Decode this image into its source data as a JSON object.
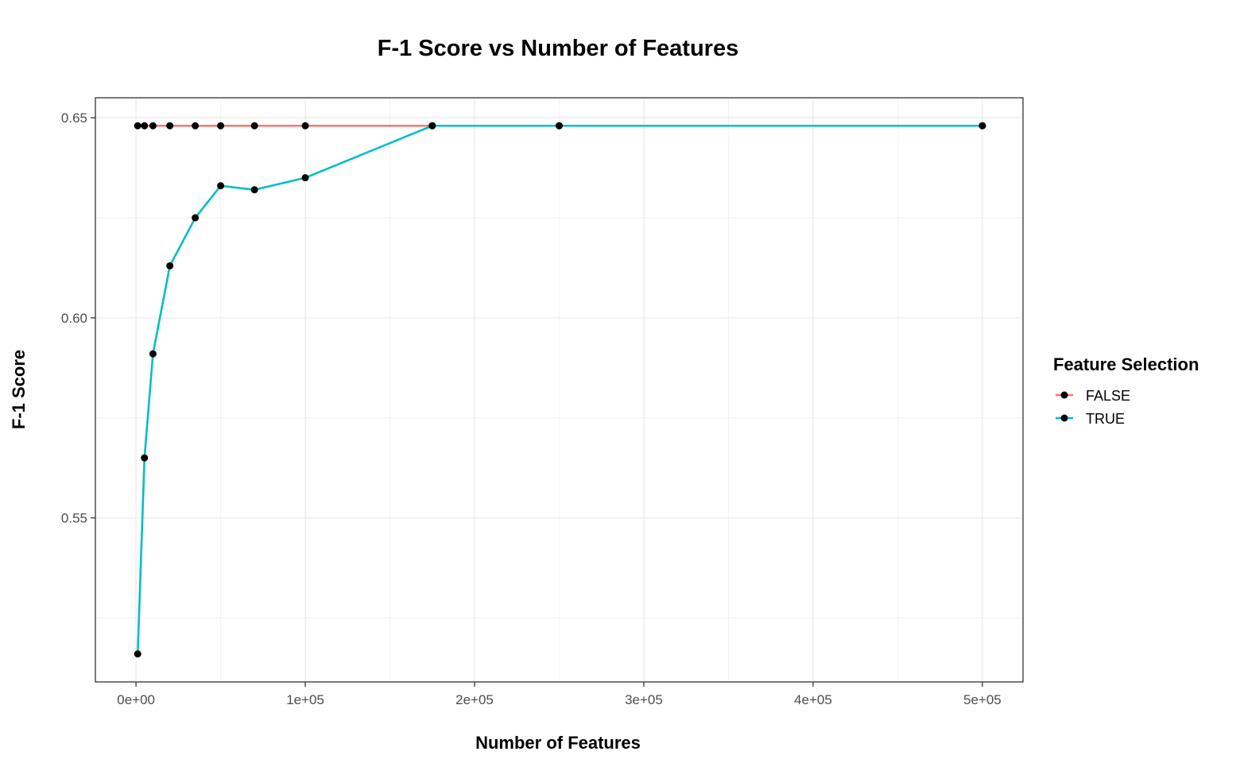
{
  "chart_data": {
    "type": "line",
    "title": "F-1 Score vs Number of Features",
    "xlabel": "Number of Features",
    "ylabel": "F-1 Score",
    "xlim": [
      -24000,
      524000
    ],
    "ylim": [
      0.509,
      0.655
    ],
    "x_ticks": [
      0,
      100000,
      200000,
      300000,
      400000,
      500000
    ],
    "x_tick_labels": [
      "0e+00",
      "1e+05",
      "2e+05",
      "3e+05",
      "4e+05",
      "5e+05"
    ],
    "y_ticks": [
      0.55,
      0.6,
      0.65
    ],
    "y_tick_labels": [
      "0.55",
      "0.60",
      "0.65"
    ],
    "grid": true,
    "legend": {
      "title": "Feature Selection",
      "placement": "right"
    },
    "series": [
      {
        "name": "FALSE",
        "color": "#F8766D",
        "x": [
          1000,
          5000,
          10000,
          20000,
          35000,
          50000,
          70000,
          100000,
          175000,
          250000,
          500000
        ],
        "y": [
          0.648,
          0.648,
          0.648,
          0.648,
          0.648,
          0.648,
          0.648,
          0.648,
          0.648,
          0.648,
          0.648
        ]
      },
      {
        "name": "TRUE",
        "color": "#00BFC4",
        "x": [
          1000,
          5000,
          10000,
          20000,
          35000,
          50000,
          70000,
          100000,
          175000,
          250000,
          500000
        ],
        "y": [
          0.516,
          0.565,
          0.591,
          0.613,
          0.625,
          0.633,
          0.632,
          0.635,
          0.648,
          0.648,
          0.648
        ]
      }
    ],
    "point_color": "#000000"
  }
}
